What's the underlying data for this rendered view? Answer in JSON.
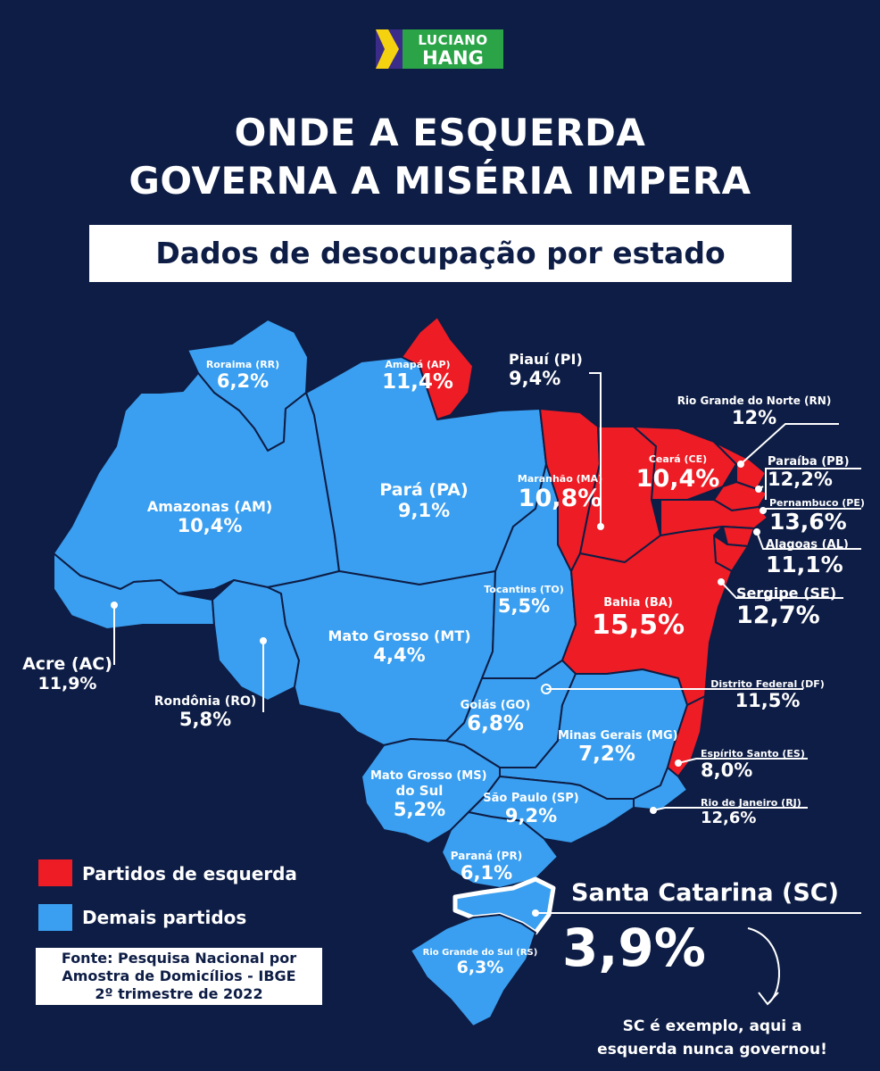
{
  "logo": {
    "line1": "LUCIANO",
    "line2": "HANG"
  },
  "title": {
    "line1": "ONDE A ESQUERDA",
    "line2": "GOVERNA A MISÉRIA IMPERA"
  },
  "subtitle": "Dados de desocupação por estado",
  "colors": {
    "background": "#0e1d45",
    "left_parties": "#ee1c25",
    "other_parties": "#3a9ff0",
    "borders": "#0e1d45"
  },
  "states": {
    "rr": {
      "name": "Roraima (RR)",
      "value": "6,2%",
      "group": "other"
    },
    "ap": {
      "name": "Amapá (AP)",
      "value": "11,4%",
      "group": "left"
    },
    "pi": {
      "name": "Piauí (PI)",
      "value": "9,4%",
      "group": "left"
    },
    "rn": {
      "name": "Rio Grande do Norte (RN)",
      "value": "12%",
      "group": "left"
    },
    "am": {
      "name": "Amazonas (AM)",
      "value": "10,4%",
      "group": "other"
    },
    "pa": {
      "name": "Pará (PA)",
      "value": "9,1%",
      "group": "other"
    },
    "ma": {
      "name": "Maranhão (MA)",
      "value": "10,8%",
      "group": "left"
    },
    "ce": {
      "name": "Ceará (CE)",
      "value": "10,4%",
      "group": "left"
    },
    "pb": {
      "name": "Paraíba (PB)",
      "value": "12,2%",
      "group": "left"
    },
    "pe": {
      "name": "Pernambuco (PE)",
      "value": "13,6%",
      "group": "left"
    },
    "al": {
      "name": "Alagoas (AL)",
      "value": "11,1%",
      "group": "left"
    },
    "se": {
      "name": "Sergipe (SE)",
      "value": "12,7%",
      "group": "left"
    },
    "to": {
      "name": "Tocantins (TO)",
      "value": "5,5%",
      "group": "other"
    },
    "ba": {
      "name": "Bahia (BA)",
      "value": "15,5%",
      "group": "left"
    },
    "ac": {
      "name": "Acre (AC)",
      "value": "11,9%",
      "group": "other"
    },
    "mt": {
      "name": "Mato Grosso (MT)",
      "value": "4,4%",
      "group": "other"
    },
    "ro": {
      "name": "Rondônia (RO)",
      "value": "5,8%",
      "group": "other"
    },
    "df": {
      "name": "Distrito Federal (DF)",
      "value": "11,5%",
      "group": "other"
    },
    "go": {
      "name": "Goiás (GO)",
      "value": "6,8%",
      "group": "other"
    },
    "mg": {
      "name": "Minas Gerais (MG)",
      "value": "7,2%",
      "group": "other"
    },
    "es": {
      "name": "Espírito Santo (ES)",
      "value": "8,0%",
      "group": "left"
    },
    "ms": {
      "name_l1": "Mato Grosso (MS)",
      "name_l2": "do Sul",
      "value": "5,2%",
      "group": "other"
    },
    "sp": {
      "name": "São Paulo (SP)",
      "value": "9,2%",
      "group": "other"
    },
    "rj": {
      "name": "Rio de Janeiro (RJ)",
      "value": "12,6%",
      "group": "other"
    },
    "pr": {
      "name": "Paraná (PR)",
      "value": "6,1%",
      "group": "other"
    },
    "sc": {
      "name": "Santa Catarina (SC)",
      "value": "3,9%",
      "group": "other"
    },
    "rs": {
      "name": "Rio Grande do Sul (RS)",
      "value": "6,3%",
      "group": "other"
    }
  },
  "legend": {
    "left": "Partidos de esquerda",
    "other": "Demais partidos"
  },
  "source": {
    "line1": "Fonte: Pesquisa Nacional por",
    "line2": "Amostra de Domicílios - IBGE",
    "line3": "2º trimestre de 2022"
  },
  "sc_note": {
    "line1": "SC é exemplo, aqui a",
    "line2": "esquerda nunca governou!"
  }
}
